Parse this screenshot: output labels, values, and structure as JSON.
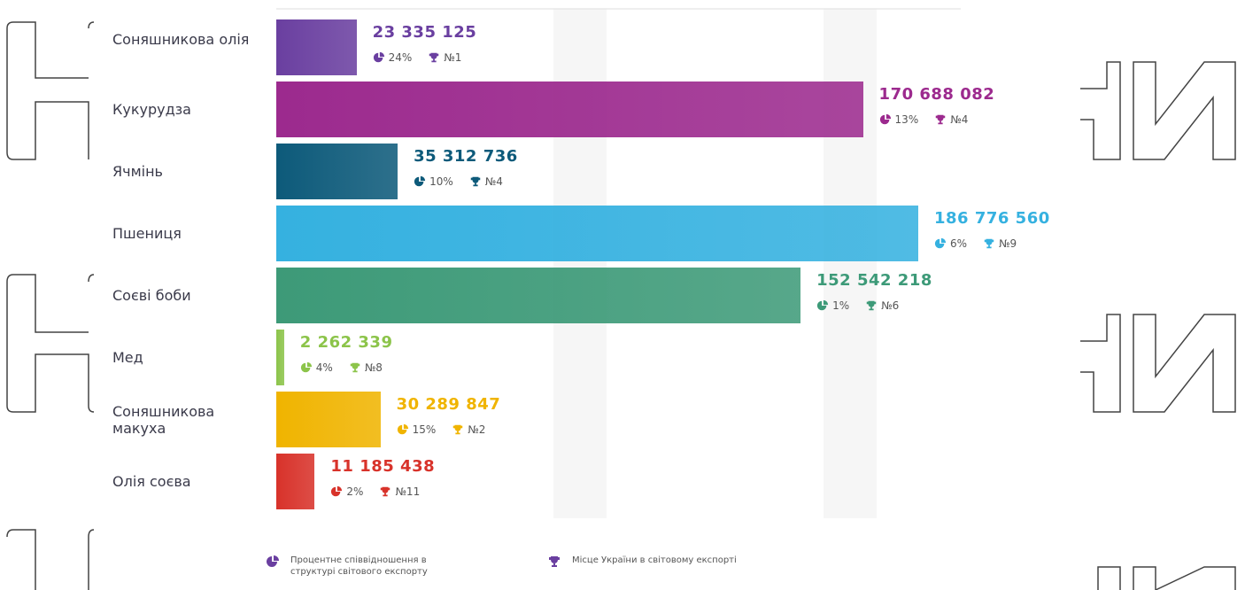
{
  "chart_data": {
    "type": "bar",
    "orientation": "horizontal",
    "categories": [
      "Соняшникова олія",
      "Кукурудза",
      "Ячмінь",
      "Пшениця",
      "Соєві боби",
      "Мед",
      "Соняшникова макуха",
      "Олія соєва"
    ],
    "values": [
      23335125,
      170688082,
      35312736,
      186776560,
      152542218,
      2262339,
      30289847,
      11185438
    ],
    "value_labels": [
      "23 335 125",
      "170 688 082",
      "35 312 736",
      "186 776 560",
      "152 542 218",
      "2 262 339",
      "30 289 847",
      "11 185 438"
    ],
    "shares": [
      24,
      13,
      10,
      6,
      1,
      4,
      15,
      2
    ],
    "share_labels": [
      "24%",
      "13%",
      "10%",
      "6%",
      "1%",
      "4%",
      "15%",
      "2%"
    ],
    "ranks": [
      "№1",
      "№4",
      "№4",
      "№9",
      "№6",
      "№8",
      "№2",
      "№11"
    ],
    "colors": [
      "#6a3fa0",
      "#9c2a8e",
      "#0d5a7a",
      "#35b1e0",
      "#3d9a78",
      "#8cc44a",
      "#f0b400",
      "#d8322a"
    ],
    "legend": {
      "share": "Процентне співвідношення в структурі світового експорту",
      "rank": "Місце України в світовому експорті"
    }
  }
}
